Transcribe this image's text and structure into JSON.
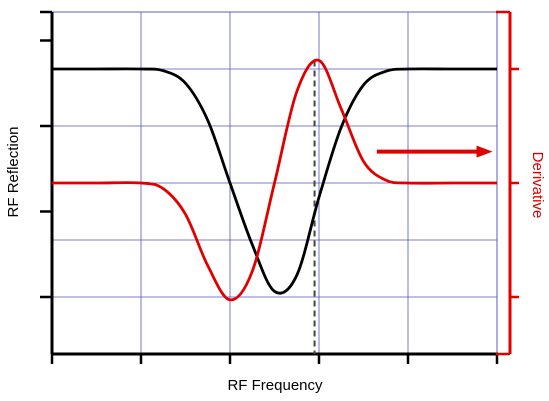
{
  "chart_data": {
    "type": "line",
    "title": "",
    "xlabel": "RF Frequency",
    "ylabel": "RF Reflection",
    "y2label": "Derivative",
    "grid": true,
    "xlim": [
      0,
      10
    ],
    "ylim": [
      0,
      6
    ],
    "y2lim": [
      -3,
      3
    ],
    "colors": {
      "reflection": "#000000",
      "derivative": "#e00000",
      "grid": "#5555bb",
      "marker_line": "#444444"
    },
    "series": [
      {
        "axis": "left",
        "x": [
          0,
          1,
          2,
          2.5,
          3,
          3.5,
          4,
          4.5,
          5,
          5.5,
          6,
          6.5,
          7,
          7.5,
          8,
          9,
          10
        ],
        "values": [
          5,
          5,
          5,
          4.97,
          4.75,
          4.1,
          3,
          1.92,
          1.1,
          1.38,
          2.75,
          3.98,
          4.72,
          4.96,
          5,
          5,
          5
        ]
      },
      {
        "axis": "right",
        "x": [
          0,
          1,
          2,
          2.5,
          3,
          3.5,
          4,
          4.5,
          5,
          5.5,
          6,
          6.5,
          7,
          7.5,
          8,
          9,
          10
        ],
        "values": [
          0,
          0,
          0,
          -0.1,
          -0.55,
          -1.45,
          -2.05,
          -1.55,
          0,
          1.6,
          2.15,
          1.3,
          0.38,
          0.05,
          0,
          0,
          0
        ]
      }
    ],
    "vertical_marker_x": 5.9,
    "arrow": {
      "from_x": 7.3,
      "to_x": 9.9,
      "y2": 0.55,
      "direction": "right",
      "points_to_axis": "right"
    }
  }
}
